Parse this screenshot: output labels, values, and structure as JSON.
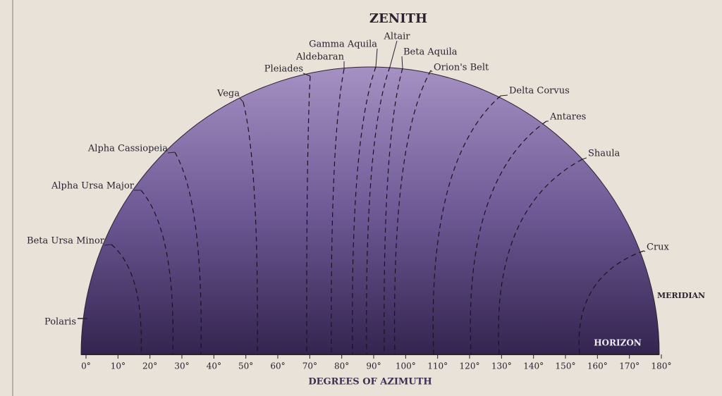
{
  "title": "ZENITH",
  "stars": [
    "Polaris",
    "Beta Ursa Minor",
    "Alpha Ursa Major",
    "Alpha Cassiopeia",
    "Vega",
    "Pleiades",
    "Aldebaran",
    "Gamma Aquila",
    "Altair",
    "Beta Aquila",
    "Orion's Belt",
    "Delta Corvus",
    "Antares",
    "Shaula",
    "Crux"
  ],
  "meridian": "MERIDIAN",
  "horizon": "HORIZON",
  "axis": {
    "ticks": [
      "0°",
      "10°",
      "20°",
      "30°",
      "40°",
      "50°",
      "60°",
      "70°",
      "80°",
      "90°",
      "100°",
      "110°",
      "120°",
      "130°",
      "140°",
      "150°",
      "160°",
      "170°",
      "180°"
    ],
    "label": "DEGREES OF AZIMUTH"
  }
}
